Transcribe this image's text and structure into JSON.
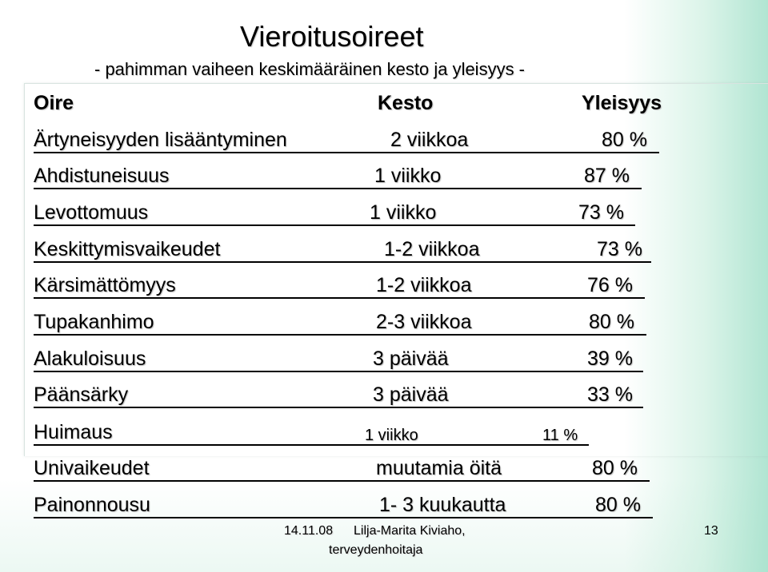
{
  "slide": {
    "title": "Vieroitusoireet",
    "subtitle": "- pahimman vaiheen keskimääräinen kesto ja yleisyys -"
  },
  "table": {
    "headers": {
      "symptom": "Oire",
      "duration": "Kesto",
      "prevalence": "Yleisyys"
    },
    "rows": [
      {
        "symptom": "Ärtyneisyyden lisääntyminen",
        "duration": "2 viikkoa",
        "prevalence": "80 %"
      },
      {
        "symptom": "Ahdistuneisuus",
        "duration": "1 viikko",
        "prevalence": "87 %"
      },
      {
        "symptom": "Levottomuus",
        "duration": "1 viikko",
        "prevalence": "73 %"
      },
      {
        "symptom": "Keskittymisvaikeudet",
        "duration": "1-2 viikkoa",
        "prevalence": "73 %"
      },
      {
        "symptom": "Kärsimättömyys",
        "duration": "1-2 viikkoa",
        "prevalence": "76 %"
      },
      {
        "symptom": "Tupakanhimo",
        "duration": "2-3 viikkoa",
        "prevalence": "80 %"
      },
      {
        "symptom": "Alakuloisuus",
        "duration": "3 päivää",
        "prevalence": "39 %"
      },
      {
        "symptom": "Päänsärky",
        "duration": "3 päivää",
        "prevalence": "33 %"
      },
      {
        "symptom": "Huimaus",
        "duration": "1 viikko",
        "prevalence": "11 %"
      },
      {
        "symptom": "Univaikeudet",
        "duration": "muutamia öitä",
        "prevalence": "80 %"
      },
      {
        "symptom": "Painonnousu",
        "duration": "1- 3 kuukautta",
        "prevalence": "80 %"
      }
    ]
  },
  "footer": {
    "date": "14.11.08",
    "author": "Lilja-Marita Kiviaho,",
    "role": "terveydenhoitaja",
    "page_number": "13"
  }
}
